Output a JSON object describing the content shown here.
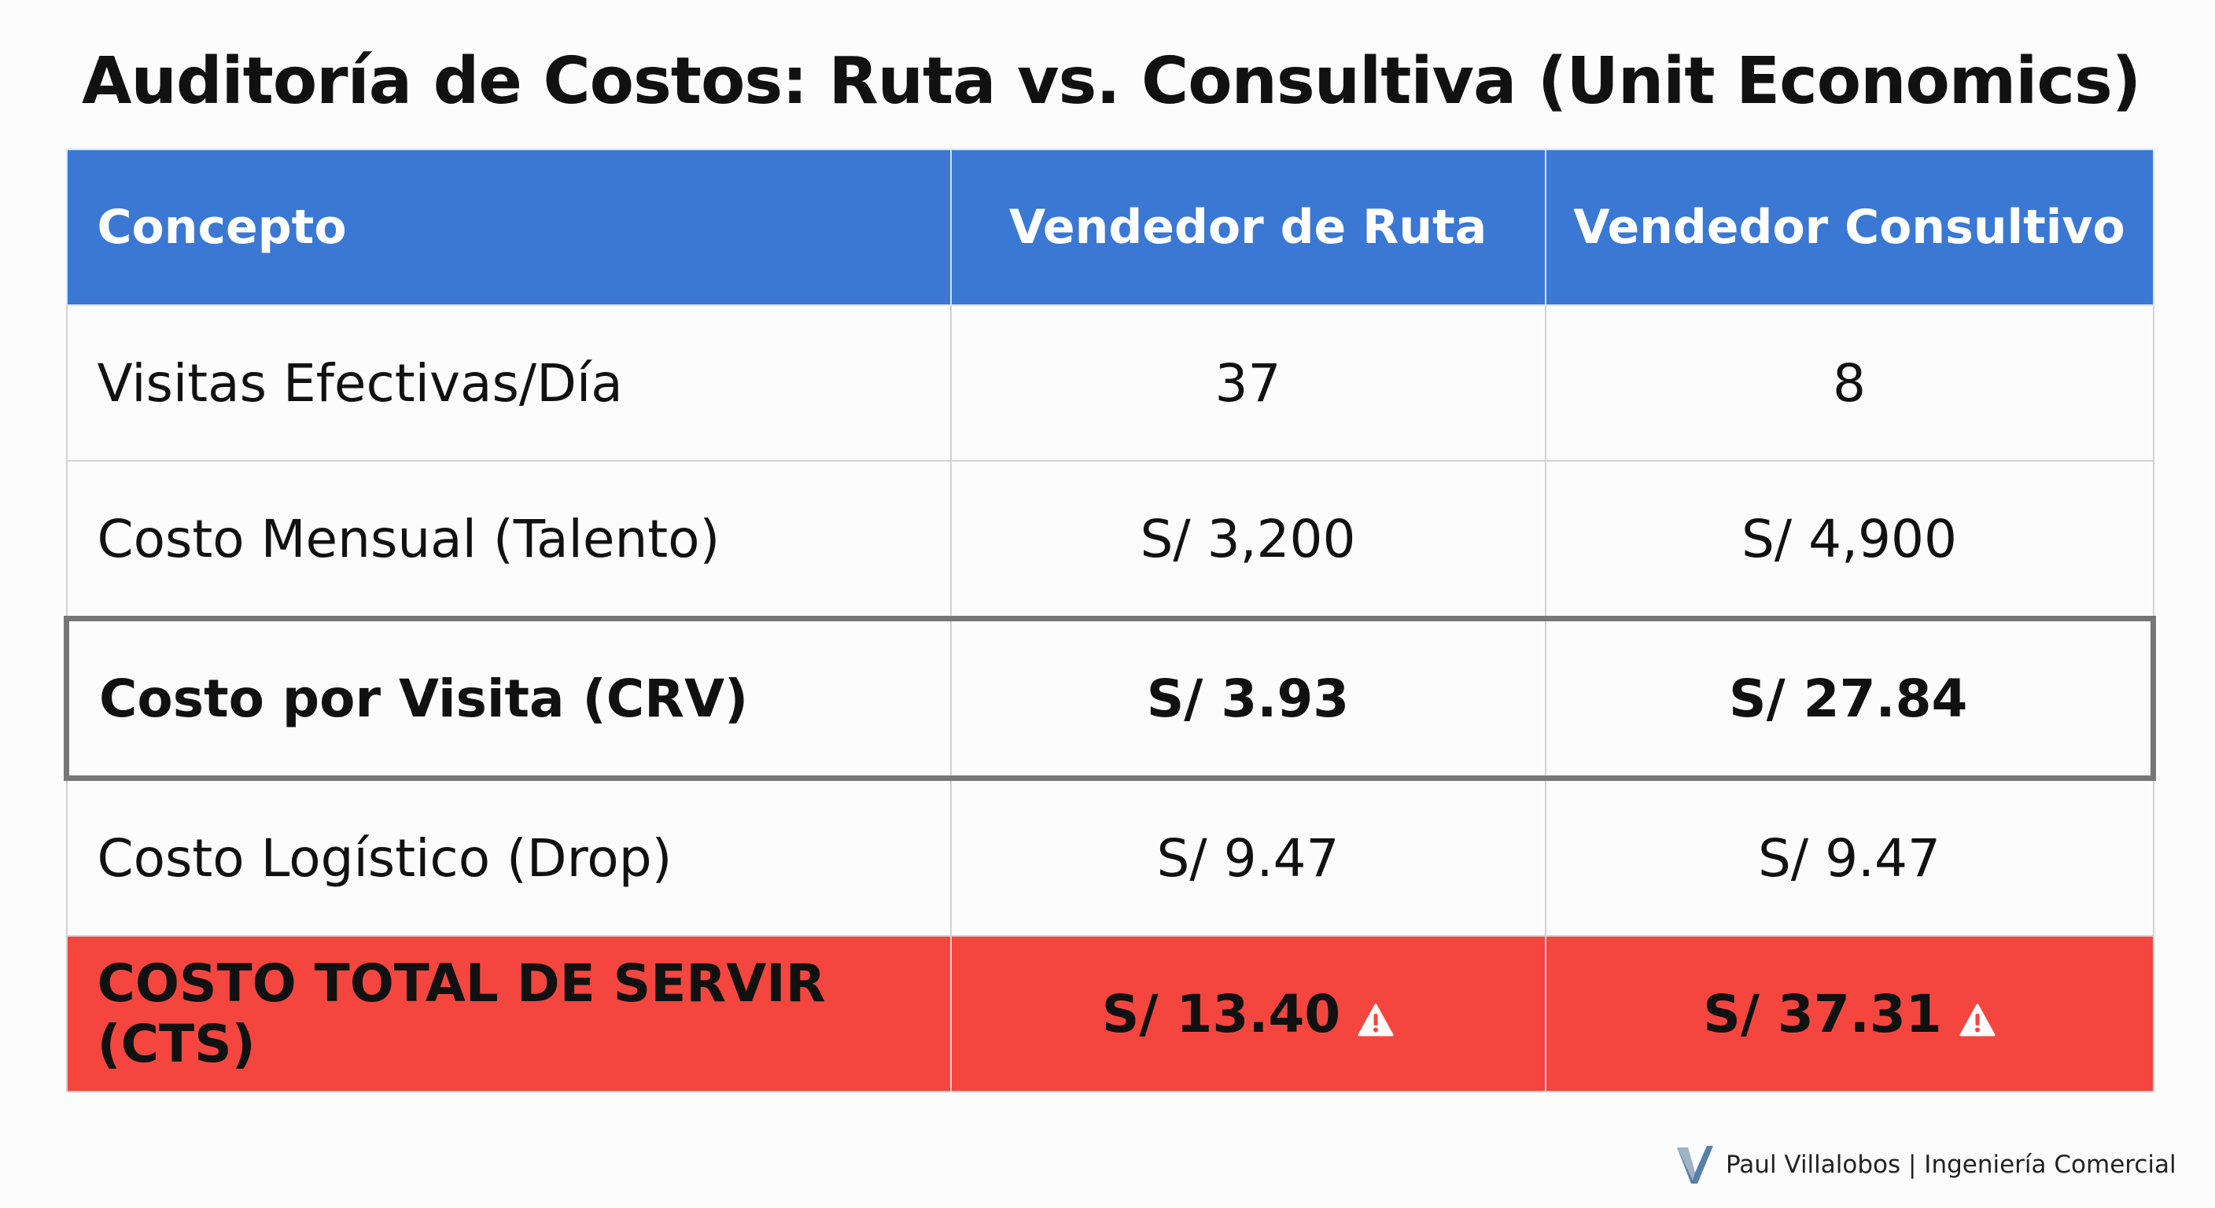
{
  "header": {
    "title": "Auditoría de Costos: Ruta vs. Consultiva (Unit Economics)"
  },
  "table": {
    "columns": [
      "Concepto",
      "Vendedor de Ruta",
      "Vendedor Consultivo"
    ],
    "rows": [
      [
        "Visitas Efectivas/Día",
        "37",
        "8"
      ],
      [
        "Costo Mensual (Talento)",
        "S/ 3,200",
        "S/ 4,900"
      ],
      [
        "Costo por Visita (CRV)",
        "S/ 3.93",
        "S/ 27.84"
      ],
      [
        "Costo Logístico (Drop)",
        "S/ 9.47",
        "S/ 9.47"
      ],
      [
        "COSTO TOTAL DE SERVIR (CTS)",
        "S/ 13.40",
        "S/ 37.31"
      ]
    ]
  },
  "footer": {
    "credit": "Paul Villalobos | Ingeniería Comercial"
  }
}
